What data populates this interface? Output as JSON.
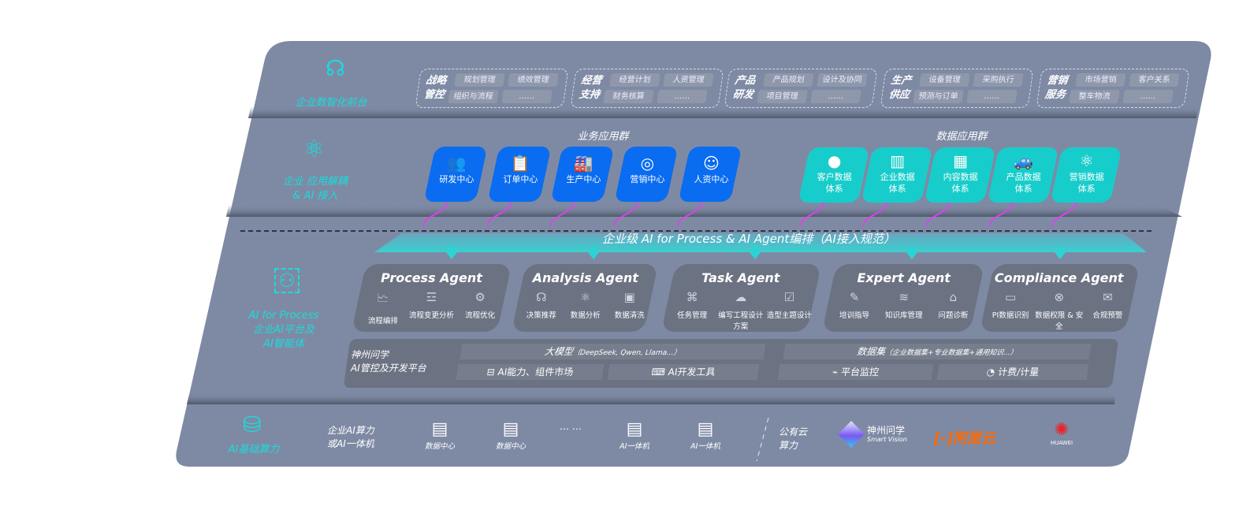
{
  "colors": {
    "panel": "#7e8aa4",
    "card": "#6b7282",
    "blue": "#0a6cf0",
    "teal": "#17cdcb",
    "cyan": "#19dcdc",
    "magenta": "#e43ef0",
    "aliyun": "#ff6a00",
    "huawei": "#e8262a"
  },
  "layer1": {
    "label": "企业数智化前台",
    "icon": "brain-icon",
    "groups": [
      {
        "title": "战略管控",
        "items": [
          "规划管理",
          "绩效管理",
          "组织与流程",
          "……"
        ]
      },
      {
        "title": "经营支持",
        "items": [
          "经营计划",
          "人资管理",
          "财务核算",
          "……"
        ]
      },
      {
        "title": "产品研发",
        "items": [
          "产品规划",
          "设计及协同",
          "项目管理",
          "……"
        ]
      },
      {
        "title": "生产供应",
        "items": [
          "设备管理",
          "采购执行",
          "预测与订单",
          "……"
        ]
      },
      {
        "title": "营销服务",
        "items": [
          "市场营销",
          "客户关系",
          "整车物流",
          "……"
        ]
      }
    ]
  },
  "layer2": {
    "label1": "企业 应用解耦",
    "label2": "& AI 接入",
    "icon": "molecule-icon",
    "business_title": "业务应用群",
    "business": [
      {
        "label": "研发中心",
        "icon": "users-icon"
      },
      {
        "label": "订单中心",
        "icon": "clipboard-icon"
      },
      {
        "label": "生产中心",
        "icon": "factory-icon"
      },
      {
        "label": "营销中心",
        "icon": "target-icon"
      },
      {
        "label": "人资中心",
        "icon": "person-icon"
      }
    ],
    "data_title": "数据应用群",
    "data": [
      {
        "l1": "客户数据",
        "l2": "体系",
        "icon": "user-icon"
      },
      {
        "l1": "企业数据",
        "l2": "体系",
        "icon": "building-icon"
      },
      {
        "l1": "内容数据",
        "l2": "体系",
        "icon": "books-icon"
      },
      {
        "l1": "产品数据",
        "l2": "体系",
        "icon": "car-icon"
      },
      {
        "l1": "营销数据",
        "l2": "体系",
        "icon": "atom-icon"
      }
    ]
  },
  "banner": "企业级 AI for Process & AI Agent编排（AI接入规范）",
  "layer3": {
    "label1": "AI for Process",
    "label2": "企业AI平台及",
    "label3": "AI智能体",
    "icon": "face-scan-icon",
    "agents": [
      {
        "title": "Process Agent",
        "items": [
          "流程编排",
          "流程变更分析",
          "流程优化"
        ]
      },
      {
        "title": "Analysis Agent",
        "items": [
          "决策推荐",
          "数据分析",
          "数据清洗"
        ]
      },
      {
        "title": "Task Agent",
        "items": [
          "任务管理",
          "编写工程设计方案",
          "造型主题设计"
        ]
      },
      {
        "title": "Expert Agent",
        "items": [
          "培训指导",
          "知识库管理",
          "问题诊断"
        ]
      },
      {
        "title": "Compliance Agent",
        "items": [
          "PI数据识别",
          "数据权限 & 安全",
          "合规预警"
        ]
      }
    ],
    "platform": {
      "name1": "神州问学",
      "name2": "AI管控及开发平台",
      "model": "大模型",
      "model_note": "（DeepSeek, Qwen, Llama...）",
      "dataset": "数据集",
      "dataset_note": "（企业数据集+专业数据集+通用知识...）",
      "tools": [
        "AI能力、组件市场",
        "AI开发工具",
        "平台监控",
        "计费/计量"
      ]
    }
  },
  "layer4": {
    "label": "AI基础算力",
    "icon": "database-icon",
    "private1": "企业AI算力",
    "private2": "或AI一体机",
    "servers": [
      "数据中心",
      "数据中心",
      "AI一体机",
      "AI一体机"
    ],
    "ellipsis": "… …",
    "public1": "公有云",
    "public2": "算力",
    "vendors": {
      "smartvision_cn": "神州问学",
      "smartvision_en": "Smart Vision",
      "aliyun": "阿里云",
      "huawei": "HUAWEI"
    }
  }
}
